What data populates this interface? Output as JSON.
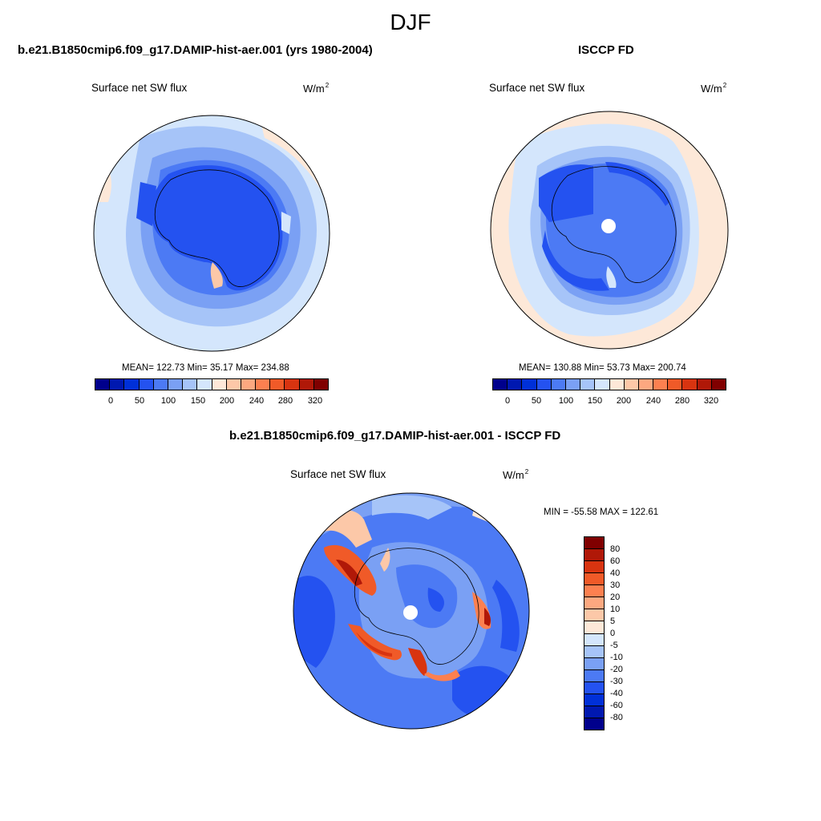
{
  "title": "DJF",
  "panels": [
    {
      "title": "b.e21.B1850cmip6.f09_g17.DAMIP-hist-aer.001 (yrs 1980-2004)",
      "variable": "Surface net SW flux",
      "units": "W/m",
      "units_sup": "2",
      "stats": "MEAN= 122.73  Min=  35.17  Max= 234.88"
    },
    {
      "title": "ISCCP FD",
      "variable": "Surface net SW flux",
      "units": "W/m",
      "units_sup": "2",
      "stats": "MEAN= 130.88  Min=  53.73  Max= 200.74"
    },
    {
      "title": "b.e21.B1850cmip6.f09_g17.DAMIP-hist-aer.001 - ISCCP FD",
      "variable": "Surface net SW flux",
      "units": "W/m",
      "units_sup": "2",
      "stats": "MIN = -55.58 MAX = 122.61"
    }
  ],
  "colorbar_top": {
    "colors": [
      "#00008c",
      "#0018b0",
      "#0030d8",
      "#2452f0",
      "#4c7af4",
      "#7aa0f4",
      "#a6c4f8",
      "#d4e6fc",
      "#fde8d8",
      "#fcc8a8",
      "#fca880",
      "#fc8050",
      "#f05a28",
      "#d83410",
      "#b01808",
      "#800000"
    ],
    "ticks": [
      "0",
      "50",
      "100",
      "150",
      "200",
      "240",
      "280",
      "320"
    ]
  },
  "colorbar_diff": {
    "colors": [
      "#800000",
      "#b01808",
      "#d83410",
      "#f05a28",
      "#fc8050",
      "#fca880",
      "#fcc8a8",
      "#fde8d8",
      "#d4e6fc",
      "#a6c4f8",
      "#7aa0f4",
      "#4c7af4",
      "#2452f0",
      "#0030d8",
      "#0018b0",
      "#00008c"
    ],
    "ticks": [
      "80",
      "60",
      "40",
      "30",
      "20",
      "10",
      "5",
      "0",
      "-5",
      "-10",
      "-20",
      "-30",
      "-40",
      "-60",
      "-80"
    ]
  }
}
